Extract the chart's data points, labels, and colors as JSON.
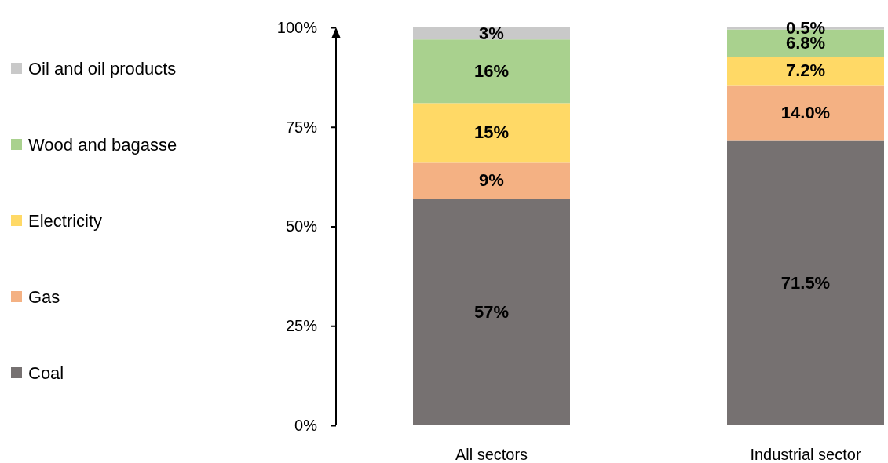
{
  "chart_data": {
    "type": "bar",
    "stacked": true,
    "categories": [
      "All sectors",
      "Industrial sector"
    ],
    "series": [
      {
        "name": "Coal",
        "color": "#767171",
        "values": [
          57,
          71.5
        ],
        "value_labels": [
          "57%",
          "71.5%"
        ]
      },
      {
        "name": "Gas",
        "color": "#f4b183",
        "values": [
          9,
          14.0
        ],
        "value_labels": [
          "9%",
          "14.0%"
        ]
      },
      {
        "name": "Electricity",
        "color": "#ffd966",
        "values": [
          15,
          7.2
        ],
        "value_labels": [
          "15%",
          "7.2%"
        ]
      },
      {
        "name": "Wood and bagasse",
        "color": "#a9d18e",
        "values": [
          16,
          6.8
        ],
        "value_labels": [
          "16%",
          "6.8%"
        ]
      },
      {
        "name": "Oil and oil products",
        "color": "#c9c9c9",
        "values": [
          3,
          0.5
        ],
        "value_labels": [
          "3%",
          "0.5%"
        ]
      }
    ],
    "ylim": [
      0,
      100
    ],
    "yticks": [
      {
        "value": 0,
        "label": "0%"
      },
      {
        "value": 25,
        "label": "25%"
      },
      {
        "value": 50,
        "label": "50%"
      },
      {
        "value": 75,
        "label": "75%"
      },
      {
        "value": 100,
        "label": "100%"
      }
    ],
    "legend": "left",
    "grid": false
  }
}
